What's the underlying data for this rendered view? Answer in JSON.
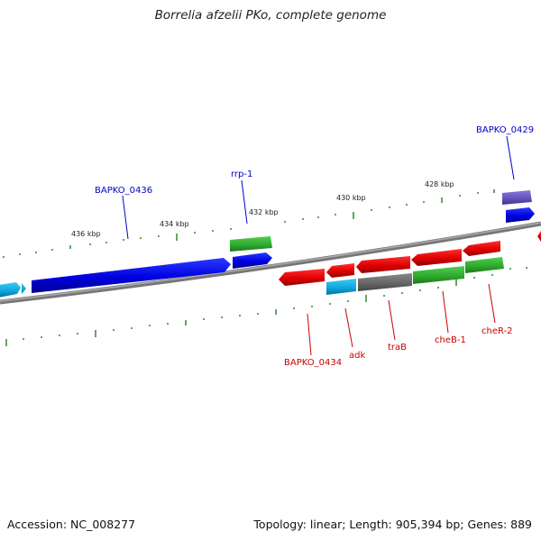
{
  "title": "Borrelia afzelii PKo, complete genome",
  "footer": {
    "accession": "Accession: NC_008277",
    "summary": "Topology: linear; Length: 905,394 bp; Genes: 889"
  },
  "scale": {
    "labels": [
      "436 kbp",
      "434 kbp",
      "432 kbp",
      "430 kbp",
      "428 kbp"
    ],
    "label_kbp": [
      436,
      434,
      432,
      430,
      428
    ]
  },
  "genes": [
    {
      "name": "BAPKO_0436",
      "color": "#0000cc",
      "label_color": "#0000cc"
    },
    {
      "name": "rrp-1",
      "color": "#0000cc",
      "label_color": "#0000cc"
    },
    {
      "name": "BAPKO_0429",
      "color": "#0000cc",
      "label_color": "#0000cc"
    },
    {
      "name": "BAPKO_0434",
      "color": "#cc0000",
      "label_color": "#cc0000"
    },
    {
      "name": "adk",
      "color": "#cc0000",
      "label_color": "#cc0000"
    },
    {
      "name": "traB",
      "color": "#cc0000",
      "label_color": "#cc0000"
    },
    {
      "name": "cheB-1",
      "color": "#cc0000",
      "label_color": "#cc0000"
    },
    {
      "name": "cheR-2",
      "color": "#cc0000",
      "label_color": "#cc0000"
    }
  ],
  "colors": {
    "forward_gene": "#0000ee",
    "reverse_gene": "#ee0000",
    "rna_gene": "#33aa33",
    "other_gene": "#00aadd",
    "pseudo_gene": "#666666",
    "misc_feature": "#6655bb",
    "backbone": "#888888",
    "ticks": "#228822"
  }
}
